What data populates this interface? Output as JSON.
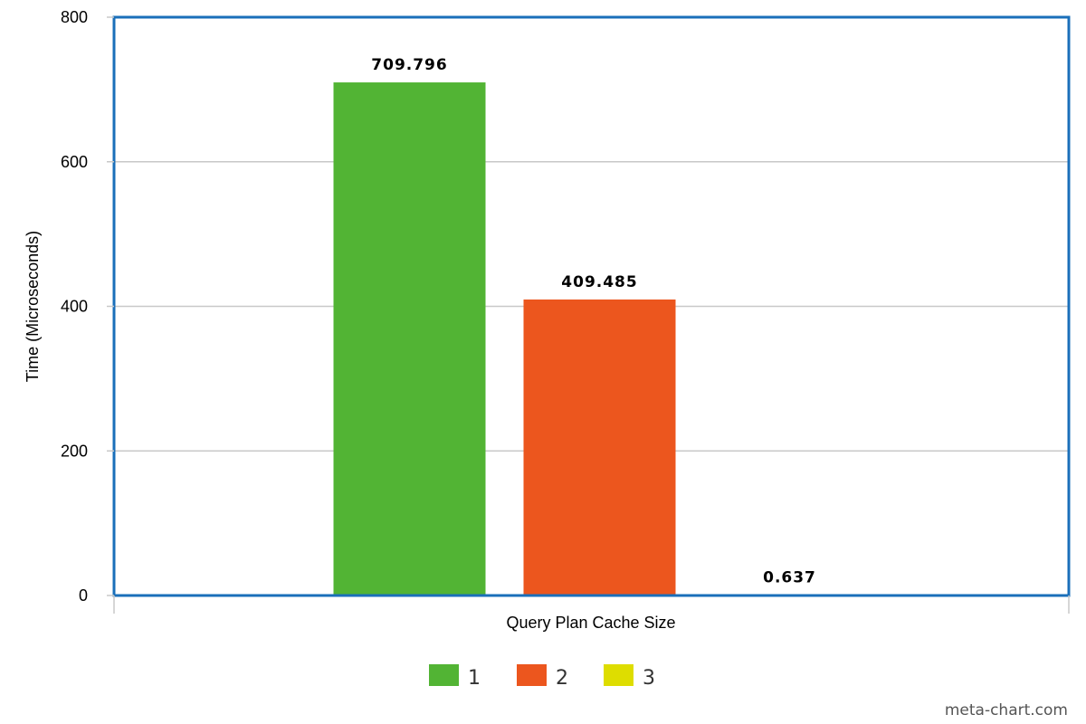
{
  "chart_data": {
    "type": "bar",
    "categories": [
      "Query Plan Cache Size"
    ],
    "series": [
      {
        "name": "1",
        "values": [
          709.796
        ],
        "color": "#52b434"
      },
      {
        "name": "2",
        "values": [
          409.485
        ],
        "color": "#ec561e"
      },
      {
        "name": "3",
        "values": [
          0.637
        ],
        "color": "#dedd00"
      }
    ],
    "data_labels": [
      "709.796",
      "409.485",
      "0.637"
    ],
    "xlabel": "Query Plan Cache Size",
    "ylabel": "Time (Microseconds)",
    "ylim": [
      0,
      800
    ],
    "yticks": [
      0,
      200,
      400,
      600,
      800
    ],
    "ytick_labels": [
      "0",
      "200",
      "400",
      "600",
      "800"
    ],
    "grid": true,
    "legend": "bottom-center",
    "frame_color": "#1a6fba",
    "grid_color": "#c8c8c8"
  },
  "credit": "meta-chart.com"
}
